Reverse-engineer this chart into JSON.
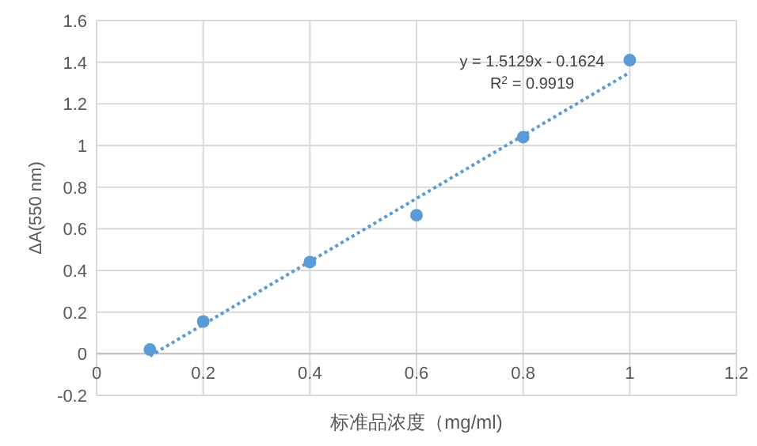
{
  "chart_data": {
    "type": "scatter",
    "xlabel": "标准品浓度（mg/ml)",
    "ylabel": "ΔA(550 nm)",
    "x": [
      0.1,
      0.2,
      0.4,
      0.6,
      0.8,
      1.0
    ],
    "series": [
      {
        "type": "scatter",
        "color": "#5b9bd5",
        "marker": "circle",
        "values": [
          0.02,
          0.155,
          0.44,
          0.665,
          1.04,
          1.41
        ]
      },
      {
        "type": "line",
        "color": "#5b9bd5",
        "marker": "none",
        "line_style": "dotted",
        "x": [
          0.1,
          1.0
        ],
        "values": [
          -0.011,
          1.351
        ]
      }
    ],
    "annotations": [
      "y = 1.5129x - 0.1624",
      "R$^{2}$ = 0.9919"
    ],
    "xlim": [
      0,
      1.2
    ],
    "xticks": [
      0,
      0.2,
      0.4,
      0.6,
      0.8,
      1,
      1.2
    ],
    "ylim": [
      -0.2,
      1.6
    ],
    "yticks": [
      -0.2,
      0,
      0.2,
      0.4,
      0.6,
      0.8,
      1,
      1.2,
      1.4,
      1.6
    ],
    "grid": true
  }
}
